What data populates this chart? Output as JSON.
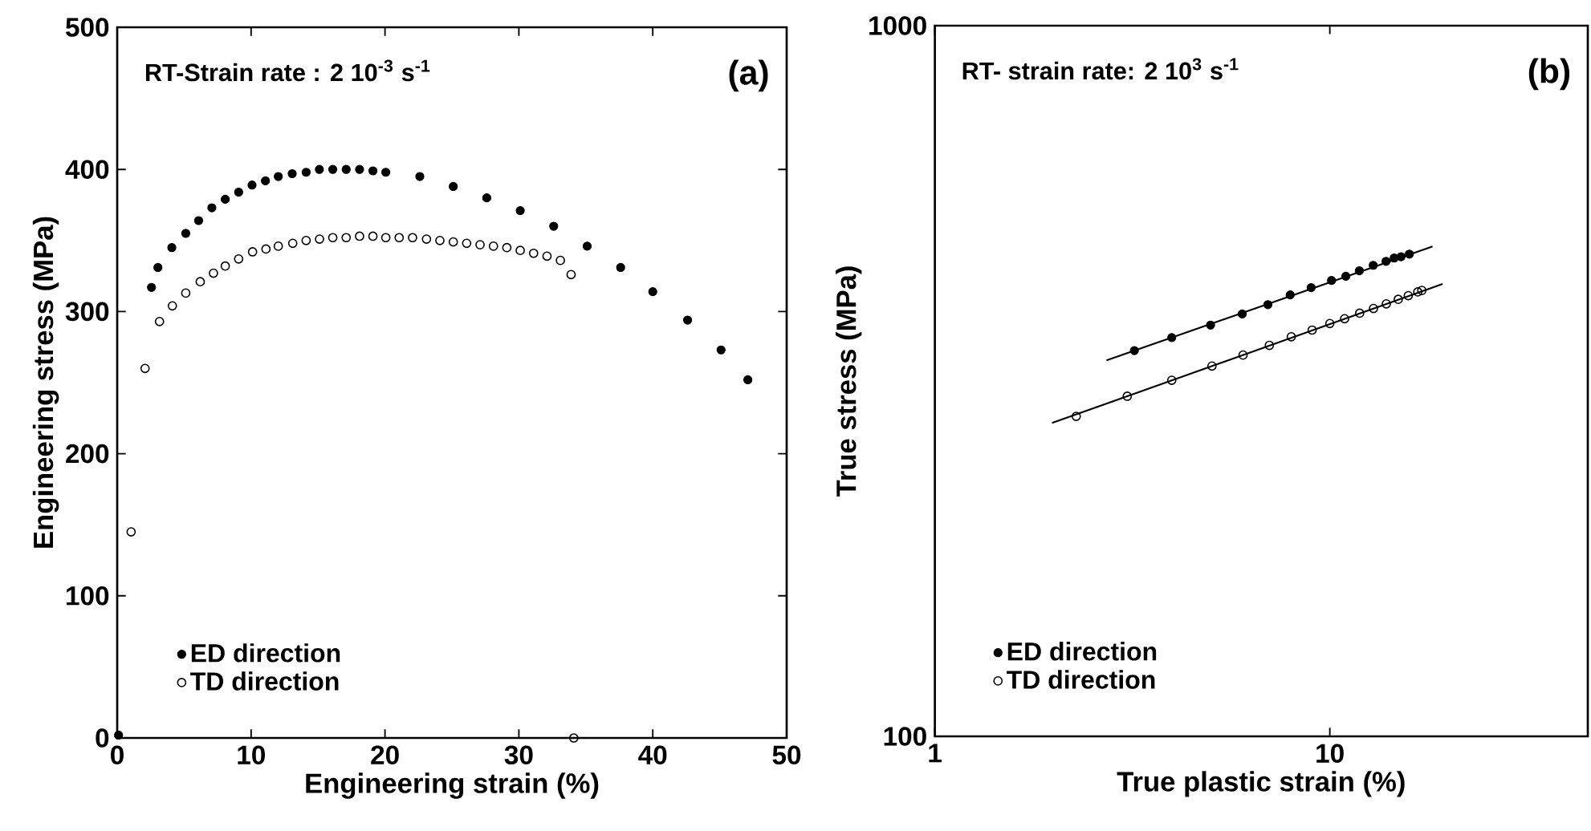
{
  "chart_data": [
    {
      "type": "scatter",
      "xlabel": "Engineering strain (%)",
      "ylabel": "Engineering stress (MPa)",
      "annotations": [
        "RT-Strain rate : 2 10$^{-3}$ s$^{-1}$",
        "(a)"
      ],
      "xlim": [
        0,
        50
      ],
      "ylim": [
        0,
        500
      ],
      "xticks": [
        0,
        10,
        20,
        30,
        40,
        50
      ],
      "yticks": [
        0,
        100,
        200,
        300,
        400,
        500
      ],
      "marker": "circle",
      "legend": "bottom left",
      "series": [
        {
          "name": "ED direction",
          "color": "#000000",
          "x": [
            0.1,
            2.56,
            3.04,
            4.08,
            5.12,
            6.08,
            7.07,
            8.07,
            9.07,
            10.07,
            11.07,
            12.03,
            13.07,
            14.11,
            15.1,
            16.1,
            17.1,
            18.1,
            19.1,
            20.06,
            22.6,
            25.1,
            27.6,
            30.1,
            32.6,
            35.1,
            37.6,
            40.0,
            42.6,
            45.1,
            47.1
          ],
          "values": [
            2,
            317,
            331,
            345,
            355,
            364,
            373,
            379,
            384,
            389,
            392,
            395,
            397,
            398,
            400,
            400,
            400,
            400,
            399,
            398,
            395,
            388,
            380,
            371,
            360,
            346,
            331,
            314,
            294,
            273,
            252
          ]
        },
        {
          "name": "TD direction",
          "color": "#000000",
          "marker": "open circle",
          "x": [
            1.04,
            2.08,
            3.16,
            4.12,
            5.12,
            6.2,
            7.19,
            8.07,
            9.07,
            10.11,
            11.11,
            12.03,
            13.11,
            14.11,
            15.11,
            16.1,
            17.1,
            18.1,
            19.1,
            20.06,
            21.06,
            22.06,
            23.1,
            24.1,
            25.1,
            26.1,
            27.1,
            28.1,
            29.1,
            30.1,
            31.1,
            32.1,
            33.1,
            33.9,
            34.1
          ],
          "values": [
            145,
            260,
            293,
            304,
            313,
            321,
            327,
            332,
            337,
            342,
            344,
            346,
            348,
            350,
            351,
            352,
            352,
            353,
            353,
            352,
            352,
            352,
            351,
            350,
            349,
            348,
            347,
            346,
            345,
            343,
            341,
            339,
            336,
            326,
            0
          ]
        }
      ]
    },
    {
      "type": "scatter",
      "xlabel": "True plastic strain (%)",
      "ylabel": "True stress (MPa)",
      "annotations": [
        "RT- strain rate: 2 10$^{3}$ s$^{-1}$",
        "(b)"
      ],
      "log": "xy",
      "xlim": [
        1,
        45
      ],
      "ylim": [
        100,
        1000
      ],
      "xticks": [
        1,
        10
      ],
      "yticks": [
        100,
        1000
      ],
      "marker": "circle",
      "legend": "bottom left",
      "series": [
        {
          "name": "ED direction",
          "color": "#000000",
          "x": [
            3.2,
            3.98,
            4.99,
            6.0,
            6.97,
            7.94,
            8.97,
            10.1,
            10.98,
            11.88,
            12.88,
            13.88,
            14.55,
            15.15,
            15.6,
            15.9
          ],
          "values": [
            349,
            364,
            379,
            393,
            405,
            418,
            428,
            438,
            444,
            452,
            460,
            466,
            471,
            473,
            null,
            477
          ]
        },
        {
          "name": "TD direction",
          "color": "#000000",
          "marker": "open circle",
          "x": [
            2.28,
            3.07,
            3.98,
            5.03,
            6.03,
            7.03,
            7.99,
            9.02,
            10.0,
            10.9,
            11.9,
            12.9,
            13.9,
            14.9,
            15.8,
            16.7,
            17.1
          ],
          "values": [
            282,
            301,
            317,
            332,
            344,
            355,
            365,
            373,
            381,
            387,
            394,
            400,
            406,
            412,
            417,
            422,
            424
          ]
        },
        {
          "type": "line",
          "color": "#000000",
          "marker": "none",
          "x": [
            2.72,
            18.2
          ],
          "values": [
            338,
            489
          ]
        },
        {
          "type": "line",
          "color": "#000000",
          "marker": "none",
          "x": [
            1.98,
            19.3
          ],
          "values": [
            276,
            433
          ]
        }
      ]
    }
  ]
}
